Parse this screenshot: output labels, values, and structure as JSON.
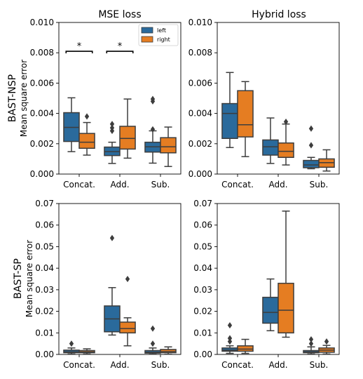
{
  "colors": {
    "left": "#2a6a9c",
    "right": "#e57d22",
    "line": "#3d3d3d"
  },
  "labels": {
    "col_titles": [
      "MSE loss",
      "Hybrid loss"
    ],
    "row_titles": [
      "BAST-NSP",
      "BAST-SP"
    ],
    "ylabel": "Mean square error",
    "legend": [
      "left",
      "right"
    ],
    "sig_marker": "*"
  },
  "chart_data": [
    {
      "type": "box",
      "title": "MSE loss",
      "row_label": "BAST-NSP",
      "ylabel": "Mean square error",
      "categories": [
        "Concat.",
        "Add.",
        "Sub."
      ],
      "ylim": [
        0,
        0.01
      ],
      "yticks": [
        "0.000",
        "0.002",
        "0.004",
        "0.006",
        "0.008",
        "0.010"
      ],
      "legend": {
        "entries": [
          "left",
          "right"
        ],
        "position": "top-right"
      },
      "significance": [
        {
          "category": "Concat.",
          "y": 0.0081,
          "marker": "*"
        },
        {
          "category": "Add.",
          "y": 0.0081,
          "marker": "*"
        }
      ],
      "series": [
        {
          "name": "left",
          "boxes": [
            {
              "whislo": 0.00148,
              "q1": 0.00215,
              "med": 0.00308,
              "q3": 0.00405,
              "whishi": 0.00503,
              "fliers": []
            },
            {
              "whislo": 0.0007,
              "q1": 0.00122,
              "med": 0.00148,
              "q3": 0.00178,
              "whishi": 0.0021,
              "fliers": [
                0.00285,
                0.00305,
                0.0033
              ]
            },
            {
              "whislo": 0.00072,
              "q1": 0.00145,
              "med": 0.0018,
              "q3": 0.0021,
              "whishi": 0.00285,
              "fliers": [
                0.00295,
                0.0048,
                0.00495
              ]
            }
          ]
        },
        {
          "name": "right",
          "boxes": [
            {
              "whislo": 0.00125,
              "q1": 0.0017,
              "med": 0.0021,
              "q3": 0.00268,
              "whishi": 0.0034,
              "fliers": [
                0.0038
              ]
            },
            {
              "whislo": 0.00105,
              "q1": 0.00165,
              "med": 0.00235,
              "q3": 0.00315,
              "whishi": 0.00495,
              "fliers": []
            },
            {
              "whislo": 0.0005,
              "q1": 0.0014,
              "med": 0.0018,
              "q3": 0.0024,
              "whishi": 0.0031,
              "fliers": []
            }
          ]
        }
      ]
    },
    {
      "type": "box",
      "title": "Hybrid loss",
      "row_label": "BAST-NSP",
      "categories": [
        "Concat.",
        "Add.",
        "Sub."
      ],
      "ylim": [
        0,
        0.01
      ],
      "yticks": [
        "0.000",
        "0.002",
        "0.004",
        "0.006",
        "0.008",
        "0.010"
      ],
      "series": [
        {
          "name": "left",
          "boxes": [
            {
              "whislo": 0.00175,
              "q1": 0.00235,
              "med": 0.004,
              "q3": 0.00465,
              "whishi": 0.0067,
              "fliers": []
            },
            {
              "whislo": 0.0007,
              "q1": 0.00125,
              "med": 0.0018,
              "q3": 0.00225,
              "whishi": 0.0037,
              "fliers": []
            },
            {
              "whislo": 0.00035,
              "q1": 0.00042,
              "med": 0.0006,
              "q3": 0.0009,
              "whishi": 0.0011,
              "fliers": [
                0.0019,
                0.003
              ]
            }
          ]
        },
        {
          "name": "right",
          "boxes": [
            {
              "whislo": 0.00115,
              "q1": 0.00245,
              "med": 0.00325,
              "q3": 0.0055,
              "whishi": 0.0061,
              "fliers": []
            },
            {
              "whislo": 0.0006,
              "q1": 0.0011,
              "med": 0.0015,
              "q3": 0.00205,
              "whishi": 0.0033,
              "fliers": [
                0.00345
              ]
            },
            {
              "whislo": 0.0002,
              "q1": 0.00045,
              "med": 0.00075,
              "q3": 0.001,
              "whishi": 0.0016,
              "fliers": []
            }
          ]
        }
      ]
    },
    {
      "type": "box",
      "title": "",
      "row_label": "BAST-SP",
      "ylabel": "Mean square error",
      "categories": [
        "Concat.",
        "Add.",
        "Sub."
      ],
      "ylim": [
        0,
        0.07
      ],
      "yticks": [
        "0.00",
        "0.01",
        "0.02",
        "0.03",
        "0.04",
        "0.05",
        "0.06",
        "0.07"
      ],
      "series": [
        {
          "name": "left",
          "boxes": [
            {
              "whislo": 0.0002,
              "q1": 0.0008,
              "med": 0.0012,
              "q3": 0.002,
              "whishi": 0.003,
              "fliers": [
                0.005
              ]
            },
            {
              "whislo": 0.009,
              "q1": 0.0105,
              "med": 0.0165,
              "q3": 0.0225,
              "whishi": 0.031,
              "fliers": [
                0.054
              ]
            },
            {
              "whislo": 0.0001,
              "q1": 0.0006,
              "med": 0.001,
              "q3": 0.0018,
              "whishi": 0.003,
              "fliers": [
                0.005,
                0.012
              ]
            }
          ]
        },
        {
          "name": "right",
          "boxes": [
            {
              "whislo": 0.0002,
              "q1": 0.0008,
              "med": 0.0012,
              "q3": 0.0018,
              "whishi": 0.0026,
              "fliers": []
            },
            {
              "whislo": 0.004,
              "q1": 0.01,
              "med": 0.012,
              "q3": 0.015,
              "whishi": 0.017,
              "fliers": [
                0.035
              ]
            },
            {
              "whislo": 0.0001,
              "q1": 0.0008,
              "med": 0.0013,
              "q3": 0.0023,
              "whishi": 0.0035,
              "fliers": []
            }
          ]
        }
      ]
    },
    {
      "type": "box",
      "title": "",
      "row_label": "BAST-SP",
      "categories": [
        "Concat.",
        "Add.",
        "Sub."
      ],
      "ylim": [
        0,
        0.07
      ],
      "yticks": [
        "0.00",
        "0.01",
        "0.02",
        "0.03",
        "0.04",
        "0.05",
        "0.06",
        "0.07"
      ],
      "series": [
        {
          "name": "left",
          "boxes": [
            {
              "whislo": 0.0005,
              "q1": 0.0015,
              "med": 0.002,
              "q3": 0.003,
              "whishi": 0.004,
              "fliers": [
                0.006,
                0.0075,
                0.0135
              ]
            },
            {
              "whislo": 0.011,
              "q1": 0.0145,
              "med": 0.0195,
              "q3": 0.0265,
              "whishi": 0.035,
              "fliers": []
            },
            {
              "whislo": 0.0002,
              "q1": 0.0008,
              "med": 0.0012,
              "q3": 0.0018,
              "whishi": 0.0035,
              "fliers": [
                0.005,
                0.007
              ]
            }
          ]
        },
        {
          "name": "right",
          "boxes": [
            {
              "whislo": 0.0005,
              "q1": 0.0015,
              "med": 0.0025,
              "q3": 0.004,
              "whishi": 0.007,
              "fliers": []
            },
            {
              "whislo": 0.008,
              "q1": 0.01,
              "med": 0.0205,
              "q3": 0.033,
              "whishi": 0.0665,
              "fliers": []
            },
            {
              "whislo": 0.0002,
              "q1": 0.001,
              "med": 0.002,
              "q3": 0.003,
              "whishi": 0.0042,
              "fliers": [
                0.006
              ]
            }
          ]
        }
      ]
    }
  ]
}
